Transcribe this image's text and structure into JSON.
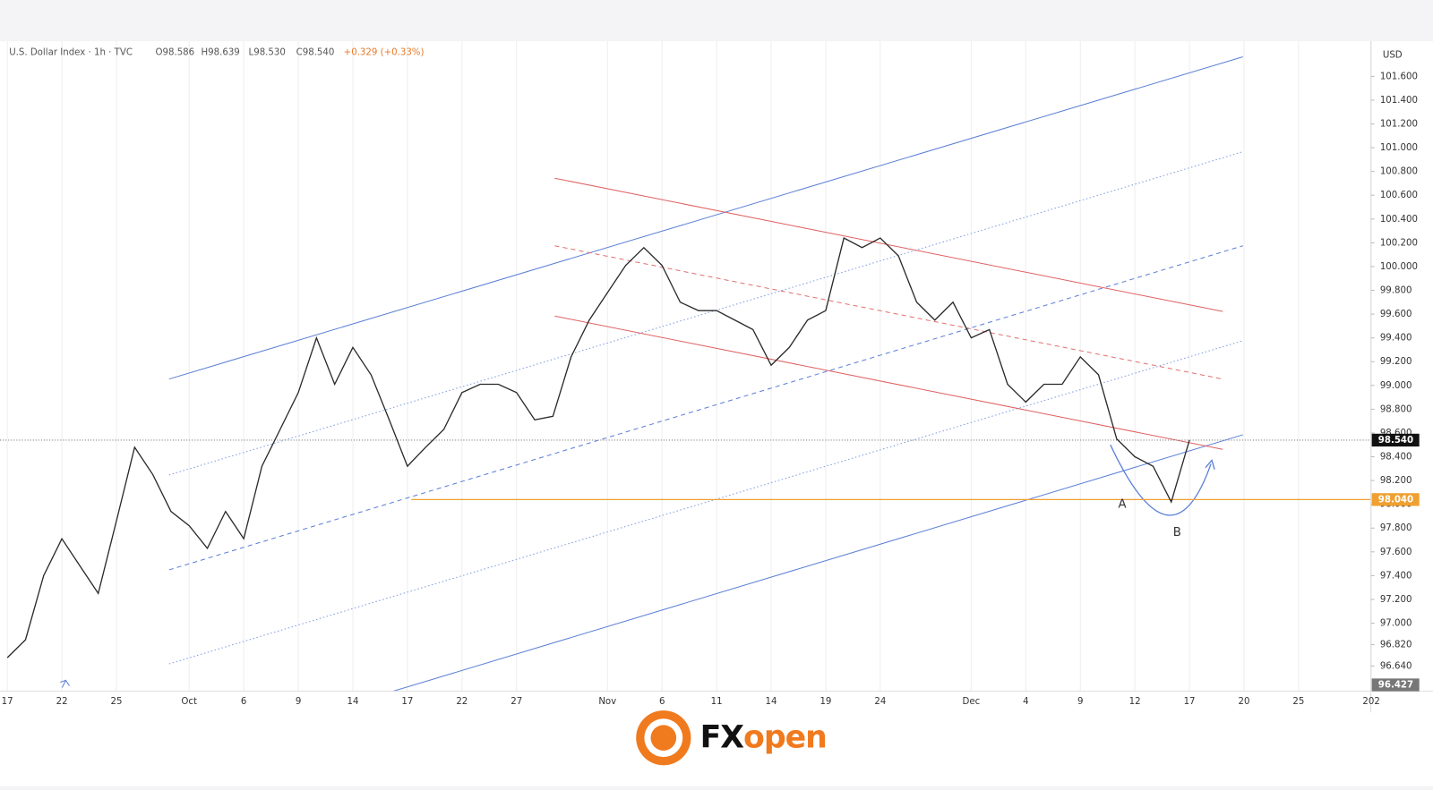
{
  "chart_data": {
    "type": "line",
    "title": "U.S. Dollar Index · 1h · TVC",
    "ohlc": [
      "O98.586",
      "H98.639",
      "L98.530",
      "C98.540"
    ],
    "change": "+0.329 (+0.33%)",
    "currency": "USD",
    "categories": [
      "17",
      null,
      null,
      "22",
      null,
      null,
      "25",
      null,
      null,
      null,
      "Oct",
      null,
      null,
      "6",
      null,
      null,
      "9",
      null,
      null,
      "14",
      null,
      null,
      "17",
      null,
      null,
      "22",
      null,
      null,
      "27",
      null,
      null,
      null,
      null,
      "Nov",
      null,
      null,
      "6",
      null,
      null,
      "11",
      null,
      null,
      "14",
      null,
      null,
      "19",
      null,
      null,
      "24",
      null,
      null,
      null,
      null,
      "Dec",
      null,
      null,
      "4",
      null,
      null,
      "9",
      null,
      null,
      "12",
      null,
      null,
      "17",
      null,
      null,
      "20",
      null,
      null,
      "25",
      null,
      null,
      null,
      "202"
    ],
    "series": [
      {
        "name": "U.S. Dollar Index",
        "color": "#2a2a2a",
        "values": [
          96.71,
          96.86,
          97.4,
          97.71,
          97.48,
          97.25,
          97.86,
          98.48,
          98.25,
          97.94,
          97.82,
          97.63,
          97.94,
          97.71,
          98.32,
          98.63,
          98.94,
          99.4,
          99.01,
          99.32,
          99.09,
          98.71,
          98.32,
          98.48,
          98.63,
          98.94,
          99.01,
          99.01,
          98.94,
          98.71,
          98.74,
          99.24,
          99.55,
          99.78,
          100.01,
          100.16,
          100.01,
          99.7,
          99.63,
          99.63,
          99.55,
          99.47,
          99.17,
          99.32,
          99.55,
          99.63,
          100.24,
          100.16,
          100.24,
          100.09,
          99.7,
          99.55,
          99.7,
          99.4,
          99.47,
          99.01,
          98.86,
          99.01,
          99.01,
          99.24,
          99.09,
          98.55,
          98.4,
          98.32,
          98.02,
          98.54,
          null,
          null,
          null,
          null,
          null,
          null,
          null,
          null,
          null,
          null
        ]
      }
    ],
    "ylim": [
      96.427,
      101.88
    ],
    "yticks": [
      {
        "value": 101.6,
        "label": "101.600"
      },
      {
        "value": 101.4,
        "label": "101.400"
      },
      {
        "value": 101.2,
        "label": "101.200"
      },
      {
        "value": 101.0,
        "label": "101.000"
      },
      {
        "value": 100.8,
        "label": "100.800"
      },
      {
        "value": 100.6,
        "label": "100.600"
      },
      {
        "value": 100.4,
        "label": "100.400"
      },
      {
        "value": 100.2,
        "label": "100.200"
      },
      {
        "value": 100.0,
        "label": "100.000"
      },
      {
        "value": 99.8,
        "label": "99.800"
      },
      {
        "value": 99.6,
        "label": "99.600"
      },
      {
        "value": 99.4,
        "label": "99.400"
      },
      {
        "value": 99.2,
        "label": "99.200"
      },
      {
        "value": 99.0,
        "label": "99.000"
      },
      {
        "value": 98.8,
        "label": "98.800"
      },
      {
        "value": 98.6,
        "label": "98.600"
      },
      {
        "value": 98.4,
        "label": "98.400"
      },
      {
        "value": 98.2,
        "label": "98.200"
      },
      {
        "value": 98.0,
        "label": "98.000"
      },
      {
        "value": 97.8,
        "label": "97.800"
      },
      {
        "value": 97.6,
        "label": "97.600"
      },
      {
        "value": 97.4,
        "label": "97.400"
      },
      {
        "value": 97.2,
        "label": "97.200"
      },
      {
        "value": 97.0,
        "label": "97.000"
      },
      {
        "value": 96.82,
        "label": "96.820"
      },
      {
        "value": 96.64,
        "label": "96.640"
      }
    ],
    "current_price": {
      "value": 98.54,
      "label": "98.540"
    },
    "level": {
      "value": 98.04,
      "label": "98.040",
      "color": "#f0a030"
    },
    "bottom_label": {
      "value": 96.427,
      "label": "96.427"
    },
    "annotations": [
      "A",
      "B"
    ],
    "grid": true
  },
  "brand": {
    "fx": "FX",
    "open": "open"
  }
}
